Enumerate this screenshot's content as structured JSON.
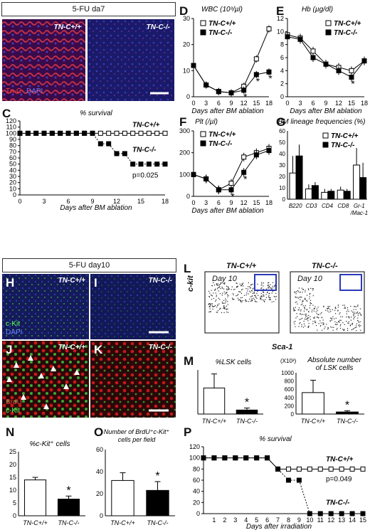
{
  "headers": {
    "top": "5-FU da7",
    "mid": "5-FU day10"
  },
  "panel_letters": [
    "A",
    "B",
    "C",
    "D",
    "E",
    "F",
    "G",
    "H",
    "I",
    "J",
    "K",
    "L",
    "M",
    "N",
    "O",
    "P"
  ],
  "micro": {
    "A": {
      "label": "TN-C+/+",
      "stain1": "Tn-C",
      "stain2": "DAPI"
    },
    "B": {
      "label": "TN-C-/-"
    },
    "H": {
      "label": "TN-C+/+",
      "stain1": "c-Kit",
      "stain2": "DAPI"
    },
    "I": {
      "label": "TN-C-/-"
    },
    "J": {
      "label": "TN-C+/+",
      "stain1": "BrdU",
      "stain2": "c-Kit"
    },
    "K": {
      "label": "TN-C-/-"
    },
    "N_left": {
      "label": "TN-C+/+",
      "day": "Day 10"
    },
    "N_right": {
      "label": "TN-C-/-",
      "day": "Day 10"
    },
    "N_axes": {
      "y": "c-kit",
      "x": "Sca-1"
    }
  },
  "chart_data": [
    {
      "id": "C",
      "type": "line",
      "title": "% survival",
      "xlabel": "Days after BM ablation",
      "x": [
        0,
        1,
        2,
        3,
        4,
        5,
        6,
        7,
        8,
        9,
        10,
        11,
        12,
        13,
        14,
        15,
        16,
        17,
        18
      ],
      "series": [
        {
          "name": "TN-C+/+",
          "values": [
            100,
            100,
            100,
            100,
            100,
            100,
            100,
            100,
            100,
            100,
            100,
            100,
            100,
            100,
            100,
            100,
            100,
            100,
            100
          ]
        },
        {
          "name": "TN-C-/-",
          "values": [
            100,
            100,
            100,
            100,
            100,
            100,
            100,
            100,
            100,
            100,
            83,
            83,
            67,
            67,
            50,
            50,
            50,
            50,
            50
          ]
        }
      ],
      "ylim": [
        0,
        120
      ],
      "yticks": [
        0,
        10,
        20,
        30,
        40,
        50,
        60,
        70,
        80,
        90,
        100,
        110,
        120
      ],
      "xticks": [
        0,
        3,
        6,
        9,
        12,
        15,
        18
      ],
      "annotation": "p=0.025"
    },
    {
      "id": "D",
      "type": "line",
      "title": "WBC (10³/µl)",
      "xlabel": "Days after BM ablation",
      "x": [
        0,
        3,
        6,
        9,
        12,
        15,
        18
      ],
      "series": [
        {
          "name": "TN-C+/+",
          "values": [
            12,
            4.5,
            2,
            1.5,
            4,
            14.5,
            26
          ]
        },
        {
          "name": "TN-C-/-",
          "values": [
            12,
            4.5,
            2,
            1.5,
            2.5,
            8.5,
            9.5
          ]
        }
      ],
      "ylim": [
        0,
        30
      ],
      "yticks": [
        0,
        10,
        20,
        30
      ],
      "significant_days": [
        12,
        15,
        18
      ]
    },
    {
      "id": "E",
      "type": "line",
      "title": "Hb (µg/dl)",
      "xlabel": "Days after BM ablation",
      "x": [
        0,
        3,
        6,
        9,
        12,
        15,
        18
      ],
      "series": [
        {
          "name": "TN-C+/+",
          "values": [
            9.5,
            9,
            7,
            5,
            4.5,
            4,
            5.5
          ]
        },
        {
          "name": "TN-C-/-",
          "values": [
            9.2,
            8.8,
            6,
            5,
            4,
            3,
            5.5
          ]
        }
      ],
      "ylim": [
        0,
        12
      ],
      "yticks": [
        0,
        2,
        4,
        6,
        8,
        10,
        12
      ],
      "significant_days": [
        15
      ]
    },
    {
      "id": "F",
      "type": "line",
      "title": "Plt (/µl)",
      "xlabel": "Days after BM ablation",
      "x": [
        0,
        3,
        6,
        9,
        12,
        15,
        18
      ],
      "series": [
        {
          "name": "TN-C+/+",
          "values": [
            100,
            80,
            30,
            60,
            180,
            200,
            220
          ]
        },
        {
          "name": "TN-C-/-",
          "values": [
            100,
            80,
            30,
            30,
            110,
            190,
            210
          ]
        }
      ],
      "ylim": [
        0,
        300
      ],
      "yticks": [
        0,
        100,
        200,
        300
      ],
      "significant_days": [
        9,
        12
      ]
    },
    {
      "id": "G",
      "type": "bar",
      "title": "BM lineage frequencies (%)",
      "categories": [
        "B220",
        "CD3",
        "CD4",
        "CD8",
        "Gr-1 /Mac-1"
      ],
      "series": [
        {
          "name": "TN-C+/+",
          "values": [
            23,
            9,
            6,
            8,
            30
          ]
        },
        {
          "name": "TN-C-/-",
          "values": [
            38,
            12,
            7,
            7,
            19
          ]
        }
      ],
      "errors": [
        [
          15,
          4,
          3,
          3,
          15
        ],
        [
          10,
          3,
          2,
          2,
          13
        ]
      ],
      "ylim": [
        0,
        60
      ],
      "yticks": [
        0,
        10,
        20,
        30,
        40,
        50,
        60
      ]
    },
    {
      "id": "L",
      "type": "bar",
      "title": "%c-Kit⁺ cells",
      "categories": [
        "TN-C+/+",
        "TN-C-/-"
      ],
      "values": [
        14,
        6.5
      ],
      "errors": [
        1,
        1.2
      ],
      "ylim": [
        0,
        25
      ],
      "yticks": [
        0,
        5,
        10,
        15,
        20,
        25
      ],
      "significant": [
        "TN-C-/-"
      ]
    },
    {
      "id": "M",
      "type": "bar",
      "title": "Number of BrdU⁺c-Kit⁺ cells per field",
      "categories": [
        "TN-C+/+",
        "TN-C-/-"
      ],
      "values": [
        32,
        23
      ],
      "errors": [
        7,
        8
      ],
      "ylim": [
        0,
        60
      ],
      "yticks": [
        0,
        20,
        40,
        60
      ],
      "significant": [
        "TN-C-/-"
      ]
    },
    {
      "id": "O1",
      "type": "bar",
      "title": "%LSK cells",
      "categories": [
        "TN-C+/+",
        "TN-C-/-"
      ],
      "values": [
        0.65,
        0.1
      ],
      "errors": [
        0.35,
        0.05
      ],
      "significant": [
        "TN-C-/-"
      ]
    },
    {
      "id": "O2",
      "type": "bar",
      "title": "Absolute number of LSK cells",
      "unit": "(X10³)",
      "categories": [
        "TN-C+/+",
        "TN-C-/-"
      ],
      "values": [
        520,
        50
      ],
      "errors": [
        300,
        30
      ],
      "ylim": [
        0,
        1000
      ],
      "yticks": [
        0,
        200,
        400,
        600,
        800,
        1000
      ],
      "significant": [
        "TN-C-/-"
      ]
    },
    {
      "id": "P",
      "type": "line",
      "title": "% survival",
      "xlabel": "Days after irradiation",
      "x": [
        0,
        1,
        2,
        3,
        4,
        5,
        6,
        7,
        8,
        9,
        10,
        11,
        12,
        13,
        14,
        15
      ],
      "series": [
        {
          "name": "TN-C+/+",
          "values": [
            100,
            100,
            100,
            100,
            100,
            100,
            100,
            80,
            80,
            80,
            80,
            80,
            80,
            80,
            80,
            80
          ]
        },
        {
          "name": "TN-C-/-",
          "values": [
            100,
            100,
            100,
            100,
            100,
            100,
            100,
            80,
            60,
            60,
            0,
            0,
            0,
            0,
            0,
            0
          ]
        }
      ],
      "ylim": [
        0,
        120
      ],
      "yticks": [
        0,
        20,
        40,
        60,
        80,
        100,
        120
      ],
      "xticks": [
        1,
        2,
        3,
        4,
        5,
        6,
        7,
        8,
        9,
        10,
        11,
        12,
        13,
        14,
        15
      ],
      "annotation": "p=0.049"
    }
  ]
}
